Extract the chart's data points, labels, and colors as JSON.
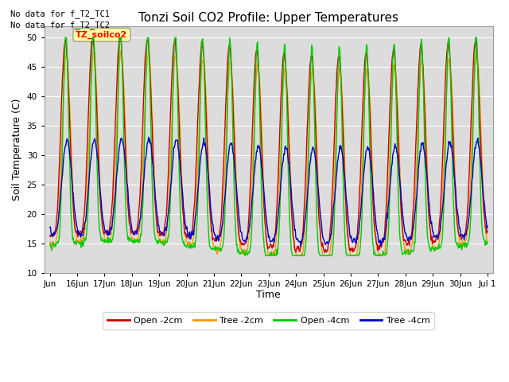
{
  "title": "Tonzi Soil CO2 Profile: Upper Temperatures",
  "ylabel": "Soil Temperature (C)",
  "xlabel": "Time",
  "ylim": [
    10,
    52
  ],
  "yticks": [
    10,
    15,
    20,
    25,
    30,
    35,
    40,
    45,
    50
  ],
  "background_color": "#dcdcdc",
  "text_annotations": [
    "No data for f_T2_TC1",
    "No data for f_T2_TC2"
  ],
  "box_label": "TZ_soilco2",
  "box_color": "#ffffa0",
  "legend_labels": [
    "Open -2cm",
    "Tree -2cm",
    "Open -4cm",
    "Tree -4cm"
  ],
  "legend_colors": [
    "#cc0000",
    "#ff9900",
    "#00cc00",
    "#0000cc"
  ],
  "n_days": 16,
  "samples_per_day": 48
}
